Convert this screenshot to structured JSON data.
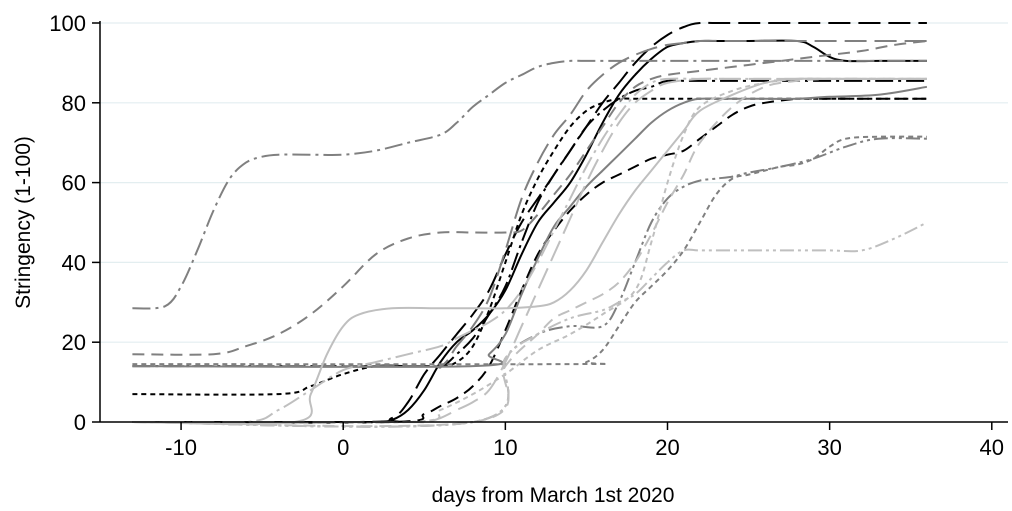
{
  "chart_data": {
    "type": "line",
    "xlabel": "days from March 1st 2020",
    "ylabel": "Stringency (1-100)",
    "xlim": [
      -15,
      41
    ],
    "ylim": [
      0,
      100
    ],
    "xticks": [
      -10,
      0,
      10,
      20,
      30,
      40
    ],
    "yticks": [
      0,
      20,
      40,
      60,
      80,
      100
    ],
    "grid": "horizontal",
    "legend": "none",
    "colors": {
      "axis": "#000000",
      "grid": "#e3eef0"
    },
    "series": [
      {
        "color": "#000000",
        "dash": "solid",
        "x": [
          -13,
          2,
          3,
          4,
          5,
          6,
          7,
          8,
          9,
          10,
          11,
          12,
          13,
          14,
          15,
          16,
          17,
          18,
          19,
          20,
          21,
          22,
          23,
          25,
          28,
          29,
          30,
          31,
          33,
          36
        ],
        "y": [
          0,
          0,
          0.5,
          3,
          8,
          15,
          20,
          23,
          27,
          33,
          42,
          50,
          55,
          60,
          67,
          75,
          82,
          87,
          91,
          94,
          95,
          95.5,
          95.5,
          95.5,
          95.5,
          94,
          91.5,
          90.5,
          90.5,
          90.5
        ]
      },
      {
        "color": "#000000",
        "dash": "longdash",
        "x": [
          -13,
          1,
          3,
          4,
          5,
          6,
          7,
          8,
          9,
          10,
          11,
          12,
          13,
          14,
          15,
          16,
          17,
          18,
          19,
          20,
          21,
          22,
          24,
          36
        ],
        "y": [
          0,
          0,
          1,
          5,
          12,
          17,
          22,
          27,
          33,
          42,
          50,
          56,
          62,
          68,
          74,
          80,
          85,
          90,
          94,
          97,
          99,
          100,
          100,
          100
        ]
      },
      {
        "color": "#000000",
        "dash": "dash",
        "x": [
          -13,
          3,
          5,
          6,
          7,
          8,
          9,
          10,
          11,
          12,
          13,
          14,
          15,
          16,
          17,
          18,
          19,
          20,
          21,
          22,
          23,
          24,
          25,
          26,
          28,
          30,
          32,
          34,
          36
        ],
        "y": [
          0,
          0,
          2,
          4,
          6,
          9,
          14,
          23,
          33,
          42,
          48,
          53,
          57,
          60,
          62,
          64,
          66,
          67,
          68,
          71,
          74,
          77,
          79,
          80,
          81,
          81,
          81,
          81,
          81
        ]
      },
      {
        "color": "#000000",
        "dash": "shortdash",
        "x": [
          -13,
          -4,
          -2,
          0,
          2,
          4,
          6,
          7,
          8,
          9,
          10,
          11,
          12,
          13,
          14,
          15,
          16,
          17,
          18,
          19,
          20,
          22,
          24,
          26,
          28,
          30,
          32,
          34,
          36
        ],
        "y": [
          7,
          7,
          9,
          12,
          14,
          14,
          14,
          15,
          19,
          28,
          40,
          52,
          61,
          68,
          74,
          78,
          80,
          81,
          81,
          81,
          81,
          81,
          81,
          81,
          81,
          81,
          81,
          81,
          81
        ]
      },
      {
        "color": "#000000",
        "dash": "dashdot",
        "x": [
          -13,
          4,
          6,
          7,
          8,
          9,
          10,
          11,
          12,
          13,
          14,
          15,
          16,
          17,
          18,
          19,
          20,
          22,
          36
        ],
        "y": [
          14,
          14,
          14,
          17,
          21,
          27,
          34,
          45,
          55,
          62,
          68,
          74,
          78,
          81,
          83,
          84,
          85.5,
          85.5,
          85.5
        ]
      },
      {
        "color": "#808080",
        "dash": "solid",
        "x": [
          -13,
          8,
          9,
          10,
          11,
          12,
          13,
          14,
          15,
          16,
          17,
          18,
          19,
          20,
          21,
          22,
          24,
          26,
          28,
          30,
          33,
          36
        ],
        "y": [
          14,
          14,
          17,
          22,
          32,
          41,
          49,
          54,
          59,
          63,
          67,
          71,
          75,
          78,
          80,
          81,
          81,
          81,
          81,
          81.5,
          82,
          84
        ]
      },
      {
        "color": "#808080",
        "dash": "longdash",
        "x": [
          -13,
          4,
          6,
          7,
          8,
          9,
          10,
          11,
          12,
          13,
          14,
          15,
          16,
          17,
          18,
          19,
          20,
          21,
          22,
          24,
          26,
          30,
          33,
          36
        ],
        "y": [
          14,
          14,
          14,
          19,
          24,
          31,
          43,
          56,
          65,
          72,
          77,
          83,
          87,
          90,
          92,
          93.5,
          94.5,
          95,
          95.5,
          95.5,
          95.5,
          95.5,
          95.5,
          95.5
        ]
      },
      {
        "color": "#808080",
        "dash": "dash",
        "x": [
          -13,
          -8,
          -6,
          -4,
          -2,
          0,
          2,
          4,
          6,
          8,
          10,
          11,
          12,
          13,
          14,
          15,
          16,
          17,
          18,
          19,
          20,
          22,
          24,
          26,
          28,
          30,
          32,
          34,
          36
        ],
        "y": [
          17,
          17,
          19,
          22,
          27,
          34,
          42,
          46,
          47.5,
          47.5,
          47.5,
          48,
          52,
          57,
          62,
          68,
          74,
          80,
          84,
          86,
          87,
          88,
          89,
          90,
          91,
          92,
          93,
          94.5,
          95.5
        ]
      },
      {
        "color": "#808080",
        "dash": "dashdot",
        "x": [
          -13,
          -11,
          -10,
          -9,
          -8,
          -7,
          -6,
          -5,
          -4,
          -2,
          0,
          2,
          4,
          6,
          7,
          8,
          9,
          10,
          11,
          12,
          13,
          14,
          15,
          16,
          17,
          18,
          19,
          20,
          22,
          24,
          26,
          28,
          30,
          33,
          36
        ],
        "y": [
          28.5,
          29,
          34,
          43,
          53,
          61,
          65,
          66.5,
          67,
          67,
          67,
          68,
          70,
          72,
          75,
          79,
          82,
          85,
          87,
          89,
          90,
          90.5,
          90.5,
          90.5,
          90.5,
          90.5,
          90.5,
          90.5,
          90.5,
          90.5,
          90.5,
          90.5,
          90.5,
          90.5,
          90.5
        ]
      },
      {
        "color": "#808080",
        "dash": "shortdash",
        "x": [
          -13,
          14,
          15,
          16,
          17,
          18,
          19,
          20,
          21,
          22,
          23,
          24,
          25,
          26,
          27,
          28,
          29,
          30,
          31,
          33,
          36
        ],
        "y": [
          14.5,
          14.5,
          15,
          18,
          24,
          30,
          34,
          38,
          43,
          50,
          57,
          61,
          62,
          63,
          64,
          64.5,
          66,
          69,
          71,
          71.5,
          71.5
        ]
      },
      {
        "color": "#808080",
        "dash": "dashdot-dot",
        "x": [
          -13,
          8,
          10,
          12,
          14,
          16,
          17,
          18,
          19,
          20,
          21,
          22,
          23,
          24,
          25,
          27,
          29,
          31,
          33,
          36
        ],
        "y": [
          0,
          0,
          16,
          22,
          24,
          24,
          30,
          40,
          50,
          56,
          59,
          60.5,
          61,
          61.5,
          62.5,
          64,
          66,
          69,
          71,
          71
        ]
      },
      {
        "color": "#bfbfbf",
        "dash": "solid",
        "x": [
          -13,
          -3,
          -2,
          -1,
          0,
          1,
          3,
          6,
          8,
          10,
          12,
          13,
          14,
          15,
          16,
          17,
          18,
          19,
          20,
          21,
          22,
          24,
          26,
          28,
          30,
          33,
          36
        ],
        "y": [
          0,
          0,
          7,
          17,
          24,
          27,
          28.5,
          28.5,
          28.5,
          28.5,
          29,
          30,
          33,
          38,
          45,
          52,
          58,
          63,
          68,
          73,
          78,
          82,
          85,
          86,
          86,
          86,
          86
        ]
      },
      {
        "color": "#bfbfbf",
        "dash": "longdash",
        "x": [
          -13,
          3,
          5,
          6,
          7,
          8,
          9,
          10,
          11,
          12,
          13,
          14,
          15,
          16,
          17,
          18,
          19,
          20,
          22,
          24,
          26,
          36
        ],
        "y": [
          0,
          0,
          0,
          1,
          3,
          5,
          8,
          15,
          24,
          33,
          42,
          51,
          60,
          68,
          75,
          80,
          83,
          85,
          86,
          86,
          86,
          86
        ]
      },
      {
        "color": "#bfbfbf",
        "dash": "dash",
        "x": [
          -13,
          8,
          10,
          12,
          13,
          14,
          15,
          16,
          17,
          18,
          19,
          20,
          21,
          22,
          24,
          26,
          28,
          30,
          33,
          36
        ],
        "y": [
          0,
          0,
          14,
          22,
          26,
          28,
          30,
          32,
          35,
          40,
          47,
          55,
          62,
          70,
          79,
          84,
          85.5,
          86,
          86,
          86
        ]
      },
      {
        "color": "#bfbfbf",
        "dash": "dashdot",
        "x": [
          -13,
          -6,
          -4,
          -2,
          0,
          2,
          4,
          6,
          7,
          8,
          9,
          10,
          11,
          12,
          13,
          14,
          15,
          16,
          17,
          18,
          19,
          20,
          22,
          24,
          26,
          28,
          30,
          33,
          36
        ],
        "y": [
          0,
          0,
          3,
          8,
          13,
          15,
          17,
          19,
          21,
          23,
          25,
          28,
          33,
          40,
          48,
          56,
          64,
          71,
          77,
          82,
          85,
          86,
          86,
          86,
          86,
          86,
          86,
          86,
          86
        ]
      },
      {
        "color": "#bfbfbf",
        "dash": "shortdash",
        "x": [
          -13,
          4,
          6,
          8,
          10,
          12,
          14,
          16,
          18,
          19,
          20,
          21,
          22,
          24,
          26,
          28,
          30,
          33,
          36
        ],
        "y": [
          0,
          0,
          3,
          7,
          12,
          18,
          22,
          27,
          33,
          45,
          60,
          72,
          79,
          83,
          85,
          86,
          86,
          86,
          86
        ]
      },
      {
        "color": "#bfbfbf",
        "dash": "dashdot-dot",
        "x": [
          -13,
          8,
          10,
          12,
          14,
          16,
          17,
          18,
          19,
          20,
          21,
          22,
          24,
          26,
          28,
          30,
          32,
          34,
          36
        ],
        "y": [
          0,
          0,
          16,
          22,
          26,
          28,
          30,
          32,
          36,
          40,
          43,
          43,
          43,
          43,
          43,
          43,
          43,
          46,
          50
        ]
      }
    ]
  }
}
